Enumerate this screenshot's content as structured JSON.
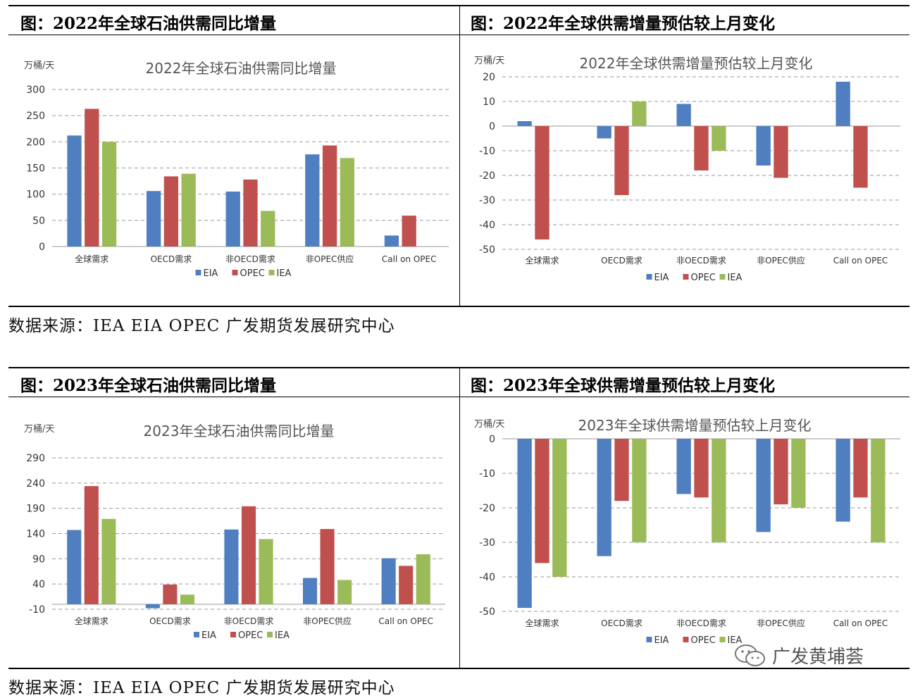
{
  "sections": [
    {
      "titles": [
        "图：2022年全球石油供需同比增量",
        "图：2022年全球供需增量预估较上月变化"
      ],
      "source": "数据来源：IEA EIA OPEC 广发期货发展研究中心"
    },
    {
      "titles": [
        "图：2023年全球石油供需同比增量",
        "图：2023年全球供需增量预估较上月变化"
      ],
      "source": "数据来源：IEA EIA OPEC 广发期货发展研究中心"
    }
  ],
  "watermark": {
    "text": "广发黄埔荟",
    "icon": "wechat-icon"
  },
  "colors": {
    "EIA": "#4f7fc0",
    "OPEC": "#c0504d",
    "IEA": "#9bbb59",
    "grid": "#9a9a9a"
  },
  "chart_data": [
    {
      "type": "bar",
      "title": "2022年全球石油供需同比增量",
      "unit": "万桶/天",
      "categories": [
        "全球需求",
        "OECD需求",
        "非OECD需求",
        "非OPEC供应",
        "Call on OPEC"
      ],
      "series": [
        {
          "name": "EIA",
          "values": [
            212,
            106,
            105,
            176,
            21
          ]
        },
        {
          "name": "OPEC",
          "values": [
            263,
            134,
            128,
            193,
            59
          ]
        },
        {
          "name": "IEA",
          "values": [
            200,
            139,
            68,
            169,
            null
          ]
        }
      ],
      "ylim": [
        0,
        300
      ],
      "yticks": [
        0,
        50,
        100,
        150,
        200,
        250,
        300
      ],
      "grid": true,
      "legend": "bottom"
    },
    {
      "type": "bar",
      "title": "2022年全球供需增量预估较上月变化",
      "unit": "万桶/天",
      "categories": [
        "全球需求",
        "OECD需求",
        "非OECD需求",
        "非OPEC供应",
        "Call on OPEC"
      ],
      "series": [
        {
          "name": "EIA",
          "values": [
            2,
            -5,
            9,
            -16,
            18
          ]
        },
        {
          "name": "OPEC",
          "values": [
            -46,
            -28,
            -18,
            -21,
            -25
          ]
        },
        {
          "name": "IEA",
          "values": [
            null,
            10,
            -10,
            null,
            null
          ]
        }
      ],
      "ylim": [
        -50,
        20
      ],
      "yticks": [
        20,
        10,
        0,
        -10,
        -20,
        -30,
        -40,
        -50
      ],
      "grid": true,
      "legend": "bottom"
    },
    {
      "type": "bar",
      "title": "2023年全球石油供需同比增量",
      "unit": "万桶/天",
      "categories": [
        "全球需求",
        "OECD需求",
        "非OECD需求",
        "非OPEC供应",
        "Call on OPEC"
      ],
      "series": [
        {
          "name": "EIA",
          "values": [
            147,
            -8,
            148,
            52,
            91
          ]
        },
        {
          "name": "OPEC",
          "values": [
            234,
            39,
            194,
            149,
            76
          ]
        },
        {
          "name": "IEA",
          "values": [
            169,
            19,
            129,
            48,
            99
          ]
        }
      ],
      "ylim": [
        -10,
        290
      ],
      "yticks": [
        290,
        240,
        190,
        140,
        90,
        40,
        -10
      ],
      "grid": true,
      "legend": "bottom"
    },
    {
      "type": "bar",
      "title": "2023年全球供需增量预估较上月变化",
      "unit": "万桶/天",
      "categories": [
        "全球需求",
        "OECD需求",
        "非OECD需求",
        "非OPEC供应",
        "Call on OPEC"
      ],
      "series": [
        {
          "name": "EIA",
          "values": [
            -49,
            -34,
            -16,
            -27,
            -24
          ]
        },
        {
          "name": "OPEC",
          "values": [
            -36,
            -18,
            -17,
            -19,
            -17
          ]
        },
        {
          "name": "IEA",
          "values": [
            -40,
            -30,
            -30,
            -20,
            -30
          ]
        }
      ],
      "ylim": [
        -50,
        0
      ],
      "yticks": [
        0,
        -10,
        -20,
        -30,
        -40,
        -50
      ],
      "grid": true,
      "legend": "bottom"
    }
  ]
}
